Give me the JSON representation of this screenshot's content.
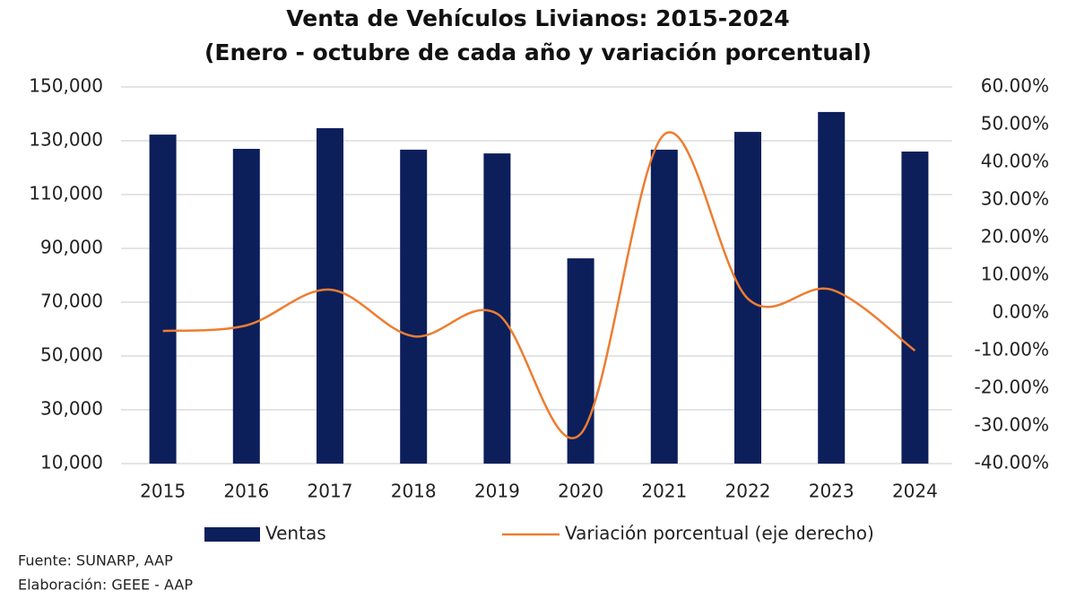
{
  "chart_data": {
    "type": "bar-line",
    "title": "Venta de Vehículos Livianos: 2015-2024",
    "subtitle": "(Enero - octubre de cada año y variación porcentual)",
    "categories": [
      "2015",
      "2016",
      "2017",
      "2018",
      "2019",
      "2020",
      "2021",
      "2022",
      "2023",
      "2024"
    ],
    "series": [
      {
        "name": "Ventas",
        "type": "bar",
        "color": "#0c1f5b",
        "values": [
          132300,
          127000,
          134700,
          126700,
          125300,
          86300,
          126700,
          133300,
          140700,
          126000
        ]
      },
      {
        "name": "Variación porcentual (eje derecho)",
        "type": "line",
        "axis": "y2",
        "color": "#ed7d31",
        "values": [
          -4.8,
          -3.3,
          6.2,
          -6.2,
          -0.2,
          -32.1,
          47.4,
          3.8,
          6.2,
          -10.0
        ]
      }
    ],
    "ylim": [
      10000,
      150000
    ],
    "yticks": [
      {
        "value": 10000,
        "label": "10,000"
      },
      {
        "value": 30000,
        "label": "30,000"
      },
      {
        "value": 50000,
        "label": "50,000"
      },
      {
        "value": 70000,
        "label": "70,000"
      },
      {
        "value": 90000,
        "label": "90,000"
      },
      {
        "value": 110000,
        "label": "110,000"
      },
      {
        "value": 130000,
        "label": "130,000"
      },
      {
        "value": 150000,
        "label": "150,000"
      }
    ],
    "y2lim": [
      -40,
      60
    ],
    "y2ticks": [
      {
        "value": -40,
        "label": "-40.00%"
      },
      {
        "value": -30,
        "label": "-30.00%"
      },
      {
        "value": -20,
        "label": "-20.00%"
      },
      {
        "value": -10,
        "label": "-10.00%"
      },
      {
        "value": 0,
        "label": "0.00%"
      },
      {
        "value": 10,
        "label": "10.00%"
      },
      {
        "value": 20,
        "label": "20.00%"
      },
      {
        "value": 30,
        "label": "30.00%"
      },
      {
        "value": 40,
        "label": "40.00%"
      },
      {
        "value": 50,
        "label": "50.00%"
      },
      {
        "value": 60,
        "label": "60.00%"
      }
    ],
    "grid": true,
    "legend": "bottom",
    "footnotes": [
      "Fuente: SUNARP, AAP",
      "Elaboración: GEEE - AAP"
    ]
  }
}
